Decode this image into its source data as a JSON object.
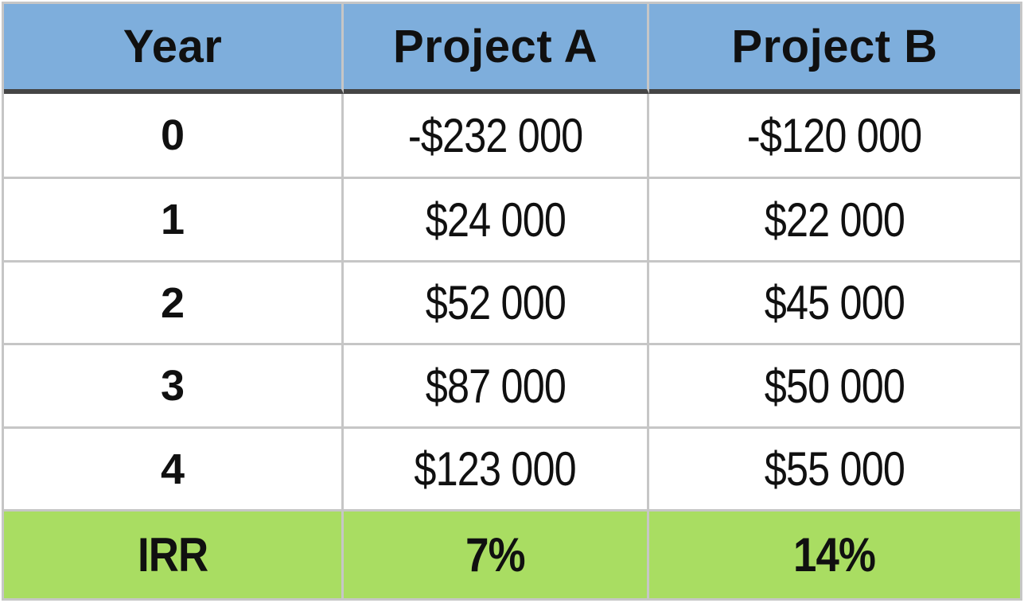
{
  "colors": {
    "header_background": "#7eaedc",
    "irr_row_background": "#a9dd62",
    "grid_line_light": "#c6c6c6",
    "header_underline_dark": "#454545",
    "text": "#101010",
    "cell_background": "#ffffff"
  },
  "table": {
    "headers": [
      "Year",
      "Project A",
      "Project B"
    ],
    "rows": [
      {
        "year": "0",
        "a": "-$232 000",
        "b": "-$120 000"
      },
      {
        "year": "1",
        "a": "$24 000",
        "b": "$22 000"
      },
      {
        "year": "2",
        "a": "$52 000",
        "b": "$45 000"
      },
      {
        "year": "3",
        "a": "$87 000",
        "b": "$50 000"
      },
      {
        "year": "4",
        "a": "$123 000",
        "b": "$55 000"
      }
    ],
    "footer": {
      "label": "IRR",
      "a": "7%",
      "b": "14%"
    }
  },
  "chart_data": {
    "type": "table",
    "title": "",
    "columns": [
      "Year",
      "Project A",
      "Project B"
    ],
    "rows": [
      [
        "0",
        "-$232 000",
        "-$120 000"
      ],
      [
        "1",
        "$24 000",
        "$22 000"
      ],
      [
        "2",
        "$52 000",
        "$45 000"
      ],
      [
        "3",
        "$87 000",
        "$50 000"
      ],
      [
        "4",
        "$123 000",
        "$55 000"
      ],
      [
        "IRR",
        "7%",
        "14%"
      ]
    ],
    "series": [
      {
        "name": "Project A",
        "cash_flows": [
          -232000,
          24000,
          52000,
          87000,
          123000
        ],
        "irr_percent": 7
      },
      {
        "name": "Project B",
        "cash_flows": [
          -120000,
          22000,
          45000,
          50000,
          55000
        ],
        "irr_percent": 14
      }
    ],
    "x": [
      0,
      1,
      2,
      3,
      4
    ],
    "xlabel": "Year",
    "layout_hints": {
      "header_fill": "#7eaedc",
      "irr_row_fill": "#a9dd62",
      "grid": "on",
      "thousands_separator": "space"
    }
  }
}
